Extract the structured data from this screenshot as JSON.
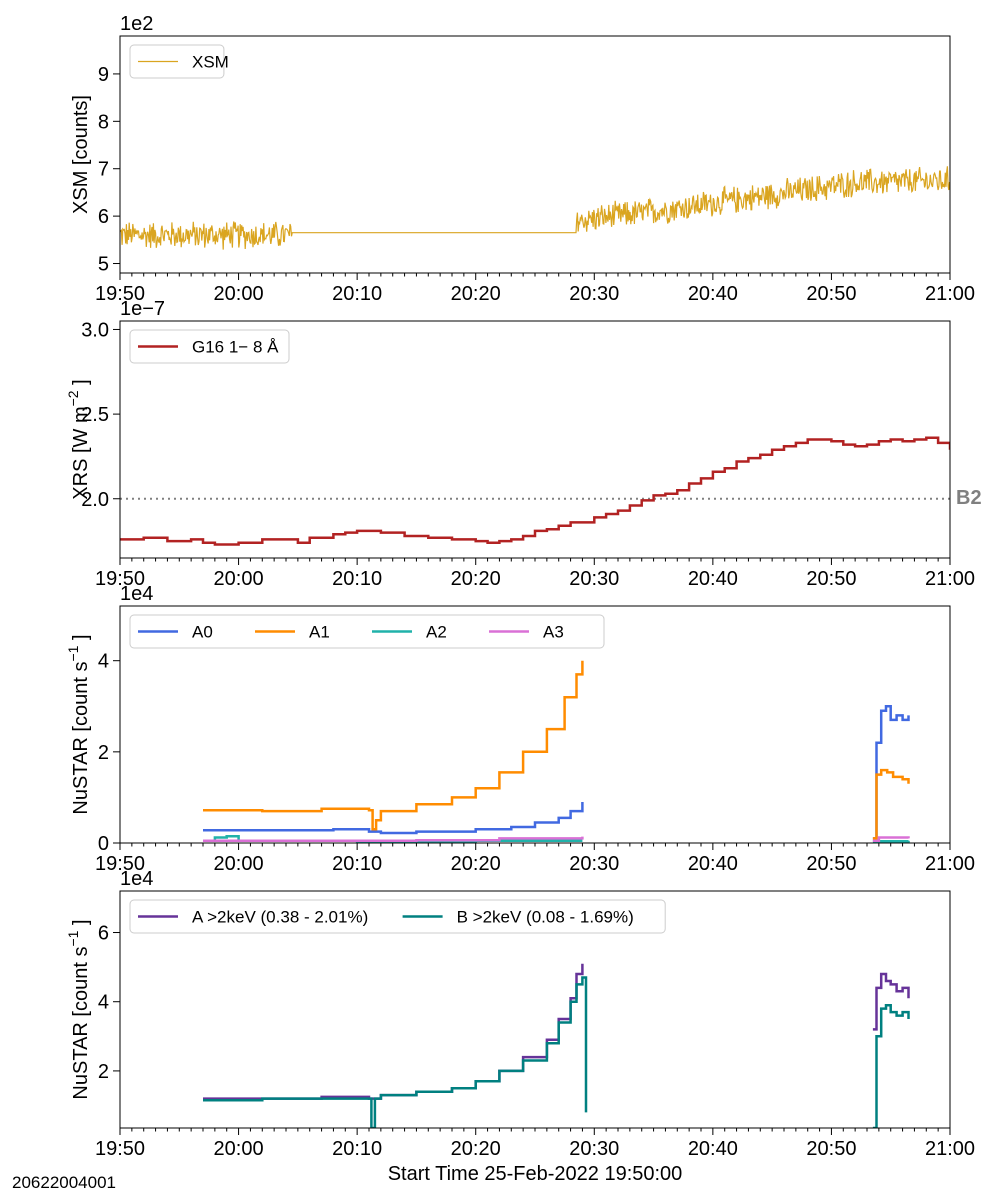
{
  "figure_id": "20622004001",
  "xlabel": "Start Time 25-Feb-2022 19:50:00",
  "chart_data": [
    {
      "type": "line",
      "ylabel": "XSM [counts]",
      "offset_text": "1e2",
      "x_ticks": [
        "19:50",
        "20:00",
        "20:10",
        "20:20",
        "20:30",
        "20:40",
        "20:50",
        "21:00"
      ],
      "y_ticks": [
        {
          "value": 5,
          "label": "5"
        },
        {
          "value": 6,
          "label": "6"
        },
        {
          "value": 7,
          "label": "7"
        },
        {
          "value": 8,
          "label": "8"
        },
        {
          "value": 9,
          "label": "9"
        }
      ],
      "xlim": [
        0,
        70
      ],
      "ylim": [
        4.8,
        9.8
      ],
      "x_unit": "minutes after 19:50",
      "legend": "top-left",
      "series": [
        {
          "name": "XSM",
          "color": "#DAA520",
          "noisy": true,
          "x": [
            0,
            14.5,
            14.5,
            38.5,
            38.5,
            45,
            55,
            62,
            70
          ],
          "y": [
            5.6,
            5.6,
            5.65,
            5.65,
            5.9,
            6.1,
            6.45,
            6.7,
            6.75
          ],
          "noise_amplitude": 0.28,
          "noise_ranges": [
            [
              0,
              14.5
            ],
            [
              38.5,
              70
            ]
          ]
        }
      ]
    },
    {
      "type": "line",
      "ylabel": "XRS [W m",
      "ylabel_sup": "−2",
      "ylabel_end": "]",
      "offset_text": "1e−7",
      "x_ticks": [
        "19:50",
        "20:00",
        "20:10",
        "20:20",
        "20:30",
        "20:40",
        "20:50",
        "21:00"
      ],
      "y_ticks": [
        {
          "value": 2.0,
          "label": "2.0"
        },
        {
          "value": 2.5,
          "label": "2.5"
        },
        {
          "value": 3.0,
          "label": "3.0"
        }
      ],
      "xlim": [
        0,
        70
      ],
      "ylim": [
        1.65,
        3.05
      ],
      "legend": "top-left",
      "reference_line": {
        "value": 2.0,
        "label": "B2",
        "color": "#808080"
      },
      "series": [
        {
          "name": "G16 1− 8 Å",
          "color": "#B22222",
          "step": true,
          "x": [
            0,
            2,
            4,
            6,
            7,
            8,
            10,
            12,
            14,
            15,
            16,
            18,
            19,
            20,
            22,
            24,
            26,
            28,
            30,
            31,
            32,
            33,
            34,
            35,
            36,
            37,
            38,
            40,
            41,
            42,
            43,
            44,
            45,
            46,
            47,
            48,
            49,
            50,
            51,
            52,
            53,
            54,
            55,
            56,
            57,
            58,
            60,
            61,
            62,
            63,
            64,
            65,
            66,
            67,
            68,
            69,
            70
          ],
          "y": [
            1.76,
            1.77,
            1.75,
            1.76,
            1.74,
            1.73,
            1.74,
            1.76,
            1.76,
            1.74,
            1.77,
            1.79,
            1.8,
            1.81,
            1.8,
            1.78,
            1.77,
            1.76,
            1.75,
            1.74,
            1.75,
            1.76,
            1.78,
            1.81,
            1.82,
            1.84,
            1.86,
            1.89,
            1.91,
            1.93,
            1.96,
            1.99,
            2.02,
            2.03,
            2.05,
            2.09,
            2.12,
            2.16,
            2.18,
            2.22,
            2.24,
            2.26,
            2.29,
            2.31,
            2.33,
            2.35,
            2.34,
            2.32,
            2.31,
            2.32,
            2.34,
            2.35,
            2.34,
            2.35,
            2.36,
            2.33,
            2.29
          ]
        }
      ]
    },
    {
      "type": "line",
      "ylabel": "NuSTAR [count s",
      "ylabel_sup": "−1",
      "ylabel_end": "]",
      "offset_text": "1e4",
      "x_ticks": [
        "19:50",
        "20:00",
        "20:10",
        "20:20",
        "20:30",
        "20:40",
        "20:50",
        "21:00"
      ],
      "y_ticks": [
        {
          "value": 0,
          "label": "0"
        },
        {
          "value": 2,
          "label": "2"
        },
        {
          "value": 4,
          "label": "4"
        }
      ],
      "xlim": [
        0,
        70
      ],
      "ylim": [
        0,
        5.2
      ],
      "legend": "top-center-left",
      "series": [
        {
          "name": "A0",
          "color": "#4169E1",
          "step": true,
          "segments": [
            {
              "x": [
                7,
                12,
                18,
                21,
                22,
                25,
                30,
                33,
                35,
                37,
                38,
                39
              ],
              "y": [
                0.28,
                0.28,
                0.3,
                0.25,
                0.22,
                0.25,
                0.3,
                0.35,
                0.45,
                0.55,
                0.7,
                0.9
              ]
            },
            {
              "x": [
                63.5,
                63.8,
                64.2,
                64.6,
                65,
                65.5,
                66,
                66.5
              ],
              "y": [
                0.1,
                2.2,
                2.9,
                3.0,
                2.7,
                2.8,
                2.7,
                2.8
              ]
            }
          ]
        },
        {
          "name": "A1",
          "color": "#FF8C00",
          "step": true,
          "segments": [
            {
              "x": [
                7,
                12,
                17,
                21,
                21.3,
                21.6,
                22,
                25,
                28,
                30,
                32,
                34,
                36,
                37.5,
                38.5,
                39
              ],
              "y": [
                0.72,
                0.7,
                0.75,
                0.72,
                0.3,
                0.5,
                0.7,
                0.85,
                1.0,
                1.2,
                1.55,
                2.0,
                2.5,
                3.2,
                3.7,
                4.0
              ]
            },
            {
              "x": [
                63.5,
                63.8,
                64.2,
                64.7,
                65.2,
                66,
                66.5
              ],
              "y": [
                0.1,
                1.5,
                1.6,
                1.55,
                1.45,
                1.4,
                1.3
              ]
            }
          ]
        },
        {
          "name": "A2",
          "color": "#20B2AA",
          "step": true,
          "segments": [
            {
              "x": [
                7,
                8,
                9,
                10,
                20,
                30,
                39
              ],
              "y": [
                0.05,
                0.12,
                0.15,
                0.05,
                0.04,
                0.05,
                0.05
              ]
            },
            {
              "x": [
                63.5,
                66.5
              ],
              "y": [
                0.04,
                0.05
              ]
            }
          ]
        },
        {
          "name": "A3",
          "color": "#DA70D6",
          "step": true,
          "segments": [
            {
              "x": [
                7,
                15,
                25,
                32,
                39
              ],
              "y": [
                0.05,
                0.05,
                0.06,
                0.1,
                0.14
              ]
            },
            {
              "x": [
                63.5,
                64,
                66.5
              ],
              "y": [
                0.05,
                0.12,
                0.1
              ]
            }
          ]
        }
      ]
    },
    {
      "type": "line",
      "ylabel": "NuSTAR [count s",
      "ylabel_sup": "−1",
      "ylabel_end": "]",
      "offset_text": "1e4",
      "x_ticks": [
        "19:50",
        "20:00",
        "20:10",
        "20:20",
        "20:30",
        "20:40",
        "20:50",
        "21:00"
      ],
      "y_ticks": [
        {
          "value": 2,
          "label": "2"
        },
        {
          "value": 4,
          "label": "4"
        },
        {
          "value": 6,
          "label": "6"
        }
      ],
      "xlim": [
        0,
        70
      ],
      "ylim": [
        0.35,
        7.2
      ],
      "legend": "top-left",
      "series": [
        {
          "name": "A >2keV (0.38 - 2.01%)",
          "color": "#663399",
          "step": true,
          "segments": [
            {
              "x": [
                7,
                12,
                17,
                21,
                22,
                25,
                28,
                30,
                32,
                34,
                36,
                37,
                38,
                38.5,
                39
              ],
              "y": [
                1.2,
                1.2,
                1.25,
                1.2,
                1.3,
                1.4,
                1.5,
                1.7,
                2.0,
                2.4,
                2.9,
                3.5,
                4.1,
                4.8,
                5.1
              ]
            },
            {
              "x": [
                63.5,
                63.8,
                64.2,
                64.6,
                65,
                65.5,
                66,
                66.5
              ],
              "y": [
                3.2,
                4.4,
                4.8,
                4.6,
                4.5,
                4.3,
                4.4,
                4.1
              ]
            }
          ]
        },
        {
          "name": "B >2keV (0.08 - 1.69%)",
          "color": "#008080",
          "step": true,
          "segments": [
            {
              "x": [
                7,
                12,
                17,
                21,
                21.2,
                21.5,
                22,
                25,
                28,
                30,
                32,
                34,
                36,
                37,
                38,
                38.5,
                39,
                39.3
              ],
              "y": [
                1.15,
                1.2,
                1.2,
                1.2,
                0.35,
                1.2,
                1.3,
                1.4,
                1.5,
                1.7,
                2.0,
                2.3,
                2.8,
                3.4,
                4.0,
                4.5,
                4.7,
                0.8
              ]
            },
            {
              "x": [
                63.5,
                63.8,
                64.2,
                64.6,
                65,
                65.5,
                66,
                66.5
              ],
              "y": [
                0.35,
                3.0,
                3.8,
                3.9,
                3.7,
                3.6,
                3.7,
                3.5
              ]
            }
          ]
        }
      ]
    }
  ]
}
